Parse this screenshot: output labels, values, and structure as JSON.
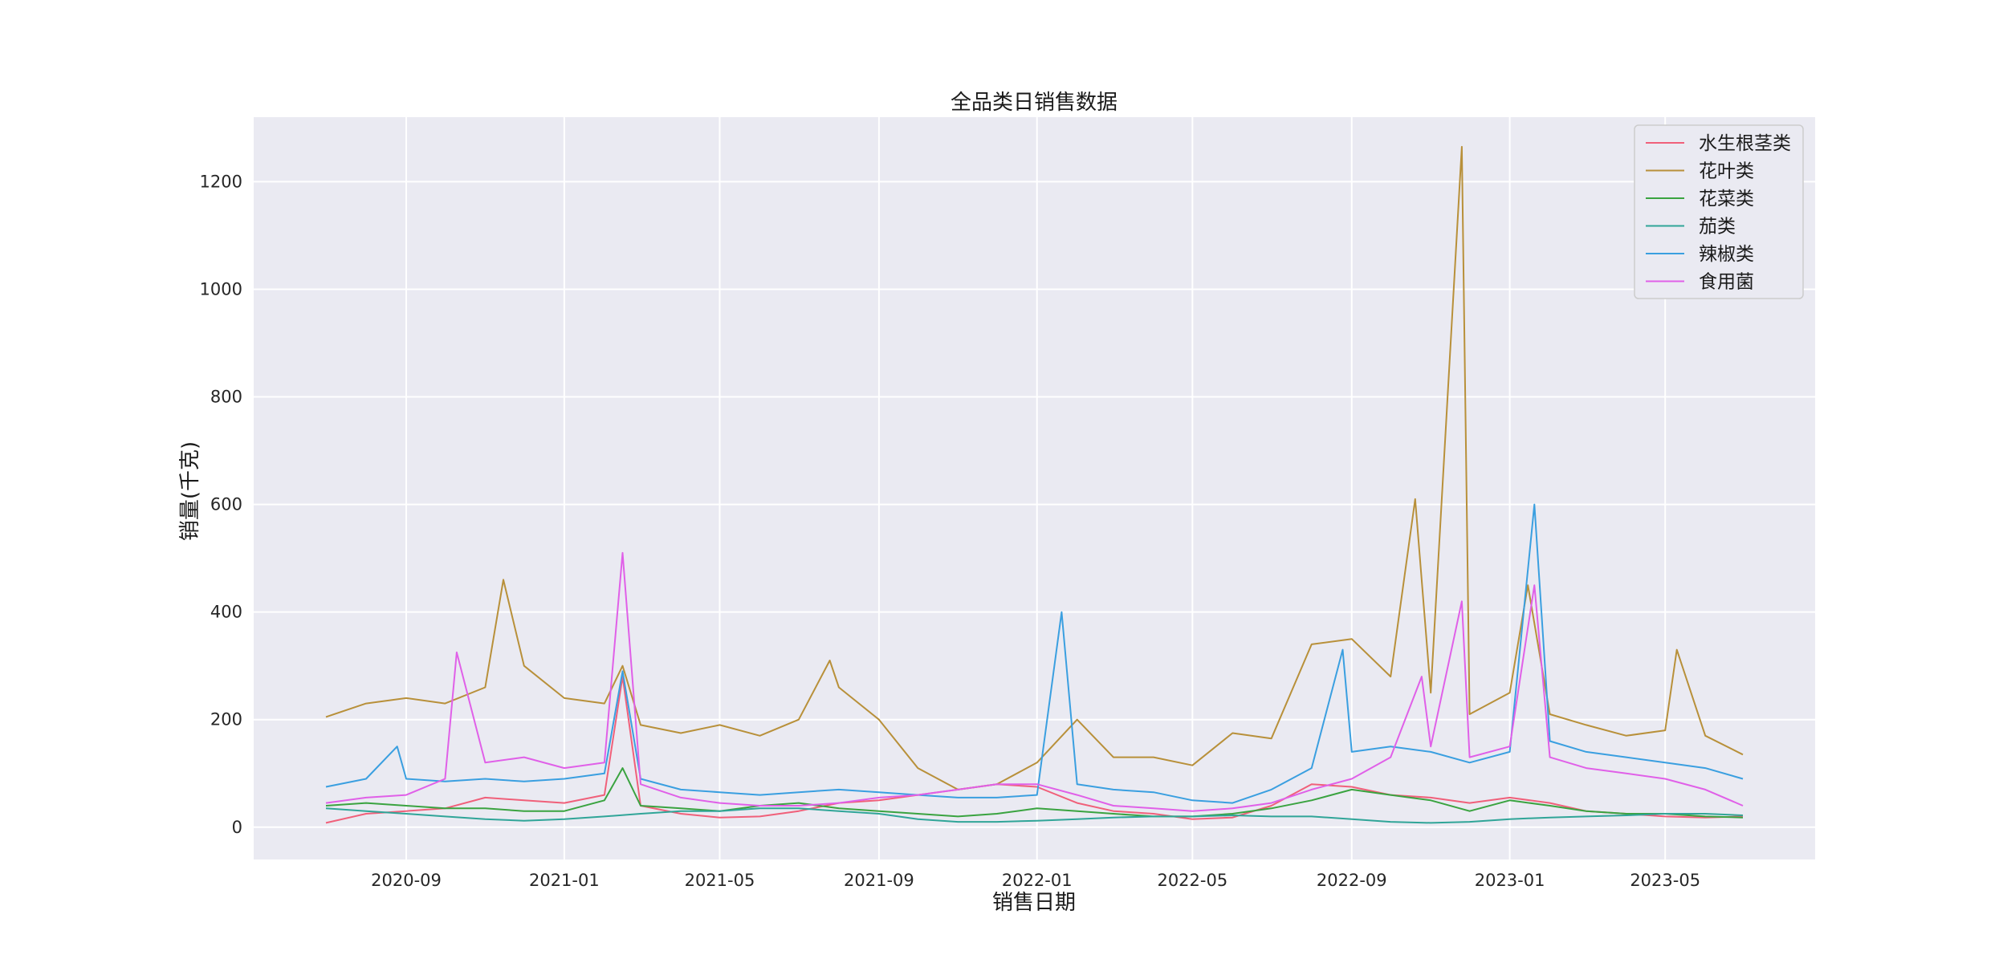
{
  "chart_data": {
    "type": "line",
    "title": "全品类日销售数据",
    "xlabel": "销售日期",
    "ylabel": "销量(千克)",
    "x_domain": [
      "2020-07-01",
      "2023-06-30"
    ],
    "ylim": [
      -60,
      1320
    ],
    "x_ticks": [
      {
        "date": "2020-09-01",
        "label": "2020-09"
      },
      {
        "date": "2021-01-01",
        "label": "2021-01"
      },
      {
        "date": "2021-05-01",
        "label": "2021-05"
      },
      {
        "date": "2021-09-01",
        "label": "2021-09"
      },
      {
        "date": "2022-01-01",
        "label": "2022-01"
      },
      {
        "date": "2022-05-01",
        "label": "2022-05"
      },
      {
        "date": "2022-09-01",
        "label": "2022-09"
      },
      {
        "date": "2023-01-01",
        "label": "2023-01"
      },
      {
        "date": "2023-05-01",
        "label": "2023-05"
      }
    ],
    "y_ticks": [
      0,
      200,
      400,
      600,
      800,
      1000,
      1200
    ],
    "grid": true,
    "legend_position": "top-right",
    "series": [
      {
        "name": "水生根茎类",
        "color": "#f0607a",
        "points": [
          [
            "2020-07-01",
            8
          ],
          [
            "2020-08-01",
            25
          ],
          [
            "2020-09-01",
            30
          ],
          [
            "2020-10-01",
            35
          ],
          [
            "2020-11-01",
            55
          ],
          [
            "2020-12-01",
            50
          ],
          [
            "2021-01-01",
            45
          ],
          [
            "2021-02-01",
            60
          ],
          [
            "2021-02-15",
            280
          ],
          [
            "2021-03-01",
            40
          ],
          [
            "2021-04-01",
            25
          ],
          [
            "2021-05-01",
            18
          ],
          [
            "2021-06-01",
            20
          ],
          [
            "2021-07-01",
            30
          ],
          [
            "2021-08-01",
            45
          ],
          [
            "2021-09-01",
            50
          ],
          [
            "2021-10-01",
            60
          ],
          [
            "2021-11-01",
            70
          ],
          [
            "2021-12-01",
            80
          ],
          [
            "2022-01-01",
            75
          ],
          [
            "2022-02-01",
            45
          ],
          [
            "2022-03-01",
            30
          ],
          [
            "2022-04-01",
            25
          ],
          [
            "2022-05-01",
            15
          ],
          [
            "2022-06-01",
            18
          ],
          [
            "2022-07-01",
            40
          ],
          [
            "2022-08-01",
            80
          ],
          [
            "2022-09-01",
            75
          ],
          [
            "2022-10-01",
            60
          ],
          [
            "2022-11-01",
            55
          ],
          [
            "2022-12-01",
            45
          ],
          [
            "2023-01-01",
            55
          ],
          [
            "2023-02-01",
            45
          ],
          [
            "2023-03-01",
            30
          ],
          [
            "2023-04-01",
            25
          ],
          [
            "2023-05-01",
            20
          ],
          [
            "2023-06-01",
            18
          ],
          [
            "2023-06-30",
            20
          ]
        ]
      },
      {
        "name": "花叶类",
        "color": "#b8903a",
        "points": [
          [
            "2020-07-01",
            205
          ],
          [
            "2020-08-01",
            230
          ],
          [
            "2020-09-01",
            240
          ],
          [
            "2020-10-01",
            230
          ],
          [
            "2020-11-01",
            260
          ],
          [
            "2020-11-15",
            460
          ],
          [
            "2020-12-01",
            300
          ],
          [
            "2021-01-01",
            240
          ],
          [
            "2021-02-01",
            230
          ],
          [
            "2021-02-15",
            300
          ],
          [
            "2021-03-01",
            190
          ],
          [
            "2021-04-01",
            175
          ],
          [
            "2021-05-01",
            190
          ],
          [
            "2021-06-01",
            170
          ],
          [
            "2021-07-01",
            200
          ],
          [
            "2021-07-25",
            310
          ],
          [
            "2021-08-01",
            260
          ],
          [
            "2021-09-01",
            200
          ],
          [
            "2021-10-01",
            110
          ],
          [
            "2021-11-01",
            70
          ],
          [
            "2021-12-01",
            80
          ],
          [
            "2022-01-01",
            120
          ],
          [
            "2022-02-01",
            200
          ],
          [
            "2022-03-01",
            130
          ],
          [
            "2022-04-01",
            130
          ],
          [
            "2022-05-01",
            115
          ],
          [
            "2022-06-01",
            175
          ],
          [
            "2022-07-01",
            165
          ],
          [
            "2022-08-01",
            340
          ],
          [
            "2022-09-01",
            350
          ],
          [
            "2022-10-01",
            280
          ],
          [
            "2022-10-20",
            610
          ],
          [
            "2022-11-01",
            250
          ],
          [
            "2022-11-25",
            1265
          ],
          [
            "2022-12-01",
            210
          ],
          [
            "2023-01-01",
            250
          ],
          [
            "2023-01-15",
            450
          ],
          [
            "2023-02-01",
            210
          ],
          [
            "2023-03-01",
            190
          ],
          [
            "2023-04-01",
            170
          ],
          [
            "2023-05-01",
            180
          ],
          [
            "2023-05-10",
            330
          ],
          [
            "2023-06-01",
            170
          ],
          [
            "2023-06-30",
            135
          ]
        ]
      },
      {
        "name": "花菜类",
        "color": "#3aa340",
        "points": [
          [
            "2020-07-01",
            40
          ],
          [
            "2020-08-01",
            45
          ],
          [
            "2020-09-01",
            40
          ],
          [
            "2020-10-01",
            35
          ],
          [
            "2020-11-01",
            35
          ],
          [
            "2020-12-01",
            30
          ],
          [
            "2021-01-01",
            30
          ],
          [
            "2021-02-01",
            50
          ],
          [
            "2021-02-15",
            110
          ],
          [
            "2021-03-01",
            40
          ],
          [
            "2021-04-01",
            35
          ],
          [
            "2021-05-01",
            30
          ],
          [
            "2021-06-01",
            40
          ],
          [
            "2021-07-01",
            45
          ],
          [
            "2021-08-01",
            35
          ],
          [
            "2021-09-01",
            30
          ],
          [
            "2021-10-01",
            25
          ],
          [
            "2021-11-01",
            20
          ],
          [
            "2021-12-01",
            25
          ],
          [
            "2022-01-01",
            35
          ],
          [
            "2022-02-01",
            30
          ],
          [
            "2022-03-01",
            25
          ],
          [
            "2022-04-01",
            20
          ],
          [
            "2022-05-01",
            20
          ],
          [
            "2022-06-01",
            25
          ],
          [
            "2022-07-01",
            35
          ],
          [
            "2022-08-01",
            50
          ],
          [
            "2022-09-01",
            70
          ],
          [
            "2022-10-01",
            60
          ],
          [
            "2022-11-01",
            50
          ],
          [
            "2022-12-01",
            30
          ],
          [
            "2023-01-01",
            50
          ],
          [
            "2023-02-01",
            40
          ],
          [
            "2023-03-01",
            30
          ],
          [
            "2023-04-01",
            25
          ],
          [
            "2023-05-01",
            25
          ],
          [
            "2023-06-01",
            20
          ],
          [
            "2023-06-30",
            18
          ]
        ]
      },
      {
        "name": "茄类",
        "color": "#30a598",
        "points": [
          [
            "2020-07-01",
            35
          ],
          [
            "2020-08-01",
            30
          ],
          [
            "2020-09-01",
            25
          ],
          [
            "2020-10-01",
            20
          ],
          [
            "2020-11-01",
            15
          ],
          [
            "2020-12-01",
            12
          ],
          [
            "2021-01-01",
            15
          ],
          [
            "2021-02-01",
            20
          ],
          [
            "2021-03-01",
            25
          ],
          [
            "2021-04-01",
            30
          ],
          [
            "2021-05-01",
            30
          ],
          [
            "2021-06-01",
            35
          ],
          [
            "2021-07-01",
            35
          ],
          [
            "2021-08-01",
            30
          ],
          [
            "2021-09-01",
            25
          ],
          [
            "2021-10-01",
            15
          ],
          [
            "2021-11-01",
            10
          ],
          [
            "2021-12-01",
            10
          ],
          [
            "2022-01-01",
            12
          ],
          [
            "2022-02-01",
            15
          ],
          [
            "2022-03-01",
            18
          ],
          [
            "2022-04-01",
            20
          ],
          [
            "2022-05-01",
            20
          ],
          [
            "2022-06-01",
            22
          ],
          [
            "2022-07-01",
            20
          ],
          [
            "2022-08-01",
            20
          ],
          [
            "2022-09-01",
            15
          ],
          [
            "2022-10-01",
            10
          ],
          [
            "2022-11-01",
            8
          ],
          [
            "2022-12-01",
            10
          ],
          [
            "2023-01-01",
            15
          ],
          [
            "2023-02-01",
            18
          ],
          [
            "2023-03-01",
            20
          ],
          [
            "2023-04-01",
            22
          ],
          [
            "2023-05-01",
            25
          ],
          [
            "2023-06-01",
            25
          ],
          [
            "2023-06-30",
            22
          ]
        ]
      },
      {
        "name": "辣椒类",
        "color": "#3a9fe0",
        "points": [
          [
            "2020-07-01",
            75
          ],
          [
            "2020-08-01",
            90
          ],
          [
            "2020-08-25",
            150
          ],
          [
            "2020-09-01",
            90
          ],
          [
            "2020-10-01",
            85
          ],
          [
            "2020-11-01",
            90
          ],
          [
            "2020-12-01",
            85
          ],
          [
            "2021-01-01",
            90
          ],
          [
            "2021-02-01",
            100
          ],
          [
            "2021-02-15",
            290
          ],
          [
            "2021-03-01",
            90
          ],
          [
            "2021-04-01",
            70
          ],
          [
            "2021-05-01",
            65
          ],
          [
            "2021-06-01",
            60
          ],
          [
            "2021-07-01",
            65
          ],
          [
            "2021-08-01",
            70
          ],
          [
            "2021-09-01",
            65
          ],
          [
            "2021-10-01",
            60
          ],
          [
            "2021-11-01",
            55
          ],
          [
            "2021-12-01",
            55
          ],
          [
            "2022-01-01",
            60
          ],
          [
            "2022-01-20",
            400
          ],
          [
            "2022-02-01",
            80
          ],
          [
            "2022-03-01",
            70
          ],
          [
            "2022-04-01",
            65
          ],
          [
            "2022-05-01",
            50
          ],
          [
            "2022-06-01",
            45
          ],
          [
            "2022-07-01",
            70
          ],
          [
            "2022-08-01",
            110
          ],
          [
            "2022-08-25",
            330
          ],
          [
            "2022-09-01",
            140
          ],
          [
            "2022-10-01",
            150
          ],
          [
            "2022-11-01",
            140
          ],
          [
            "2022-12-01",
            120
          ],
          [
            "2023-01-01",
            140
          ],
          [
            "2023-01-20",
            600
          ],
          [
            "2023-02-01",
            160
          ],
          [
            "2023-03-01",
            140
          ],
          [
            "2023-04-01",
            130
          ],
          [
            "2023-05-01",
            120
          ],
          [
            "2023-06-01",
            110
          ],
          [
            "2023-06-30",
            90
          ]
        ]
      },
      {
        "name": "食用菌",
        "color": "#e060e8",
        "points": [
          [
            "2020-07-01",
            45
          ],
          [
            "2020-08-01",
            55
          ],
          [
            "2020-09-01",
            60
          ],
          [
            "2020-10-01",
            90
          ],
          [
            "2020-10-10",
            325
          ],
          [
            "2020-11-01",
            120
          ],
          [
            "2020-12-01",
            130
          ],
          [
            "2021-01-01",
            110
          ],
          [
            "2021-02-01",
            120
          ],
          [
            "2021-02-15",
            510
          ],
          [
            "2021-03-01",
            80
          ],
          [
            "2021-04-01",
            55
          ],
          [
            "2021-05-01",
            45
          ],
          [
            "2021-06-01",
            40
          ],
          [
            "2021-07-01",
            40
          ],
          [
            "2021-08-01",
            45
          ],
          [
            "2021-09-01",
            55
          ],
          [
            "2021-10-01",
            60
          ],
          [
            "2021-11-01",
            70
          ],
          [
            "2021-12-01",
            80
          ],
          [
            "2022-01-01",
            80
          ],
          [
            "2022-02-01",
            60
          ],
          [
            "2022-03-01",
            40
          ],
          [
            "2022-04-01",
            35
          ],
          [
            "2022-05-01",
            30
          ],
          [
            "2022-06-01",
            35
          ],
          [
            "2022-07-01",
            45
          ],
          [
            "2022-08-01",
            70
          ],
          [
            "2022-09-01",
            90
          ],
          [
            "2022-10-01",
            130
          ],
          [
            "2022-10-25",
            280
          ],
          [
            "2022-11-01",
            150
          ],
          [
            "2022-11-25",
            420
          ],
          [
            "2022-12-01",
            130
          ],
          [
            "2023-01-01",
            150
          ],
          [
            "2023-01-20",
            450
          ],
          [
            "2023-02-01",
            130
          ],
          [
            "2023-03-01",
            110
          ],
          [
            "2023-04-01",
            100
          ],
          [
            "2023-05-01",
            90
          ],
          [
            "2023-06-01",
            70
          ],
          [
            "2023-06-30",
            40
          ]
        ]
      }
    ]
  }
}
